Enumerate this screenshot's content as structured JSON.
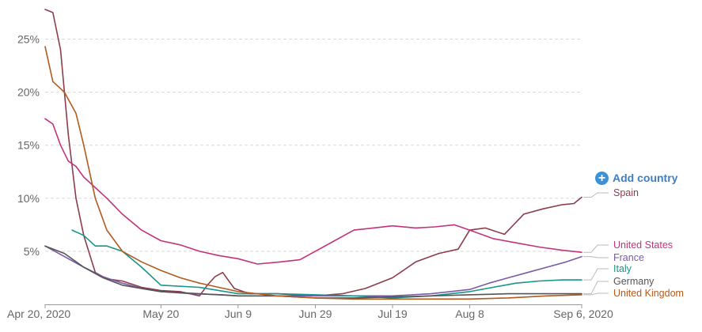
{
  "chart_data": {
    "type": "line",
    "x_unit": "date",
    "x_range": [
      "2020-04-20",
      "2020-09-06"
    ],
    "ylim": [
      0,
      27
    ],
    "y_ticks": [
      5,
      10,
      15,
      20,
      25
    ],
    "y_tick_labels": [
      "5%",
      "10%",
      "15%",
      "20%",
      "25%"
    ],
    "x_tick_labels": [
      "Apr 20, 2020",
      "May 20",
      "Jun 9",
      "Jun 29",
      "Jul 19",
      "Aug 8",
      "Sep 6, 2020"
    ],
    "x_tick_dates": [
      "2020-04-20",
      "2020-05-20",
      "2020-06-09",
      "2020-06-29",
      "2020-07-19",
      "2020-08-08",
      "2020-09-06"
    ],
    "grid": true,
    "legend_placement": "right, labels at line ends",
    "series": [
      {
        "name": "Spain",
        "color": "#8c3d4b",
        "x": [
          "2020-04-20",
          "2020-04-22",
          "2020-04-24",
          "2020-04-26",
          "2020-04-28",
          "2020-04-30",
          "2020-05-03",
          "2020-05-06",
          "2020-05-10",
          "2020-05-15",
          "2020-05-20",
          "2020-05-25",
          "2020-05-30",
          "2020-06-01",
          "2020-06-03",
          "2020-06-05",
          "2020-06-08",
          "2020-06-12",
          "2020-06-19",
          "2020-06-29",
          "2020-07-06",
          "2020-07-12",
          "2020-07-19",
          "2020-07-25",
          "2020-07-31",
          "2020-08-05",
          "2020-08-08",
          "2020-08-12",
          "2020-08-17",
          "2020-08-22",
          "2020-08-27",
          "2020-09-01",
          "2020-09-04",
          "2020-09-06"
        ],
        "y": [
          27.8,
          27.5,
          24,
          16,
          10,
          6.5,
          3,
          2.4,
          2.2,
          1.6,
          1.3,
          1.2,
          0.8,
          1.8,
          2.6,
          3.0,
          1.5,
          1.0,
          1.0,
          0.8,
          1.0,
          1.5,
          2.5,
          4.0,
          4.8,
          5.2,
          7.0,
          7.2,
          6.6,
          8.5,
          9.0,
          9.4,
          9.5,
          10.1
        ]
      },
      {
        "name": "United States",
        "color": "#c2347a",
        "x": [
          "2020-04-20",
          "2020-04-22",
          "2020-04-24",
          "2020-04-26",
          "2020-04-28",
          "2020-04-30",
          "2020-05-03",
          "2020-05-06",
          "2020-05-10",
          "2020-05-15",
          "2020-05-20",
          "2020-05-25",
          "2020-05-30",
          "2020-06-04",
          "2020-06-09",
          "2020-06-14",
          "2020-06-20",
          "2020-06-25",
          "2020-06-29",
          "2020-07-04",
          "2020-07-09",
          "2020-07-14",
          "2020-07-19",
          "2020-07-25",
          "2020-07-30",
          "2020-08-04",
          "2020-08-08",
          "2020-08-14",
          "2020-08-20",
          "2020-08-26",
          "2020-09-01",
          "2020-09-06"
        ],
        "y": [
          17.5,
          17,
          15,
          13.5,
          13,
          12,
          11,
          10,
          8.5,
          7,
          6,
          5.6,
          5,
          4.6,
          4.3,
          3.8,
          4.0,
          4.2,
          5.0,
          6.0,
          7.0,
          7.2,
          7.4,
          7.2,
          7.3,
          7.5,
          7.0,
          6.2,
          5.8,
          5.4,
          5.1,
          4.9
        ]
      },
      {
        "name": "France",
        "color": "#7b5aa6",
        "x": [
          "2020-04-20",
          "2020-04-25",
          "2020-04-30",
          "2020-05-05",
          "2020-05-10",
          "2020-05-15",
          "2020-05-20",
          "2020-05-28",
          "2020-06-05",
          "2020-06-09",
          "2020-06-19",
          "2020-06-29",
          "2020-07-09",
          "2020-07-19",
          "2020-07-29",
          "2020-08-08",
          "2020-08-13",
          "2020-08-18",
          "2020-08-23",
          "2020-08-28",
          "2020-09-02",
          "2020-09-06"
        ],
        "y": [
          5.5,
          4.5,
          3.5,
          2.6,
          2.0,
          1.5,
          1.2,
          1.0,
          0.9,
          0.8,
          0.8,
          0.8,
          0.8,
          0.8,
          1.0,
          1.4,
          2.0,
          2.5,
          3.0,
          3.5,
          4.0,
          4.5
        ]
      },
      {
        "name": "Italy",
        "color": "#19948c",
        "x": [
          "2020-04-27",
          "2020-04-30",
          "2020-05-03",
          "2020-05-06",
          "2020-05-10",
          "2020-05-15",
          "2020-05-20",
          "2020-05-30",
          "2020-06-09",
          "2020-06-19",
          "2020-06-29",
          "2020-07-09",
          "2020-07-19",
          "2020-07-29",
          "2020-08-08",
          "2020-08-14",
          "2020-08-20",
          "2020-08-26",
          "2020-09-01",
          "2020-09-06"
        ],
        "y": [
          7.0,
          6.5,
          5.5,
          5.5,
          5.0,
          3.5,
          1.8,
          1.6,
          1.0,
          1.0,
          0.9,
          0.8,
          0.6,
          0.8,
          1.2,
          1.6,
          2.0,
          2.2,
          2.3,
          2.3
        ]
      },
      {
        "name": "Germany",
        "color": "#555555",
        "x": [
          "2020-04-20",
          "2020-04-25",
          "2020-04-30",
          "2020-05-05",
          "2020-05-10",
          "2020-05-15",
          "2020-05-20",
          "2020-05-30",
          "2020-06-09",
          "2020-06-19",
          "2020-06-29",
          "2020-07-09",
          "2020-07-19",
          "2020-07-29",
          "2020-08-08",
          "2020-08-18",
          "2020-08-28",
          "2020-09-06"
        ],
        "y": [
          5.5,
          4.8,
          3.5,
          2.5,
          1.8,
          1.5,
          1.2,
          1.0,
          0.8,
          0.8,
          0.6,
          0.6,
          0.7,
          0.8,
          0.9,
          1.0,
          1.0,
          1.0
        ]
      },
      {
        "name": "United Kingdom",
        "color": "#b35a1f",
        "x": [
          "2020-04-20",
          "2020-04-22",
          "2020-04-25",
          "2020-04-28",
          "2020-04-30",
          "2020-05-03",
          "2020-05-06",
          "2020-05-10",
          "2020-05-15",
          "2020-05-20",
          "2020-05-25",
          "2020-05-30",
          "2020-06-04",
          "2020-06-09",
          "2020-06-19",
          "2020-06-29",
          "2020-07-09",
          "2020-07-19",
          "2020-07-29",
          "2020-08-08",
          "2020-08-18",
          "2020-08-28",
          "2020-09-06"
        ],
        "y": [
          24.3,
          21,
          20,
          18,
          15,
          10,
          7,
          5,
          4,
          3.2,
          2.5,
          2.0,
          1.6,
          1.2,
          0.8,
          0.6,
          0.5,
          0.5,
          0.5,
          0.5,
          0.6,
          0.8,
          0.9
        ]
      }
    ]
  },
  "add_country": {
    "label": "Add country",
    "icon": "plus-circle-icon",
    "color": "#3d92d6"
  }
}
